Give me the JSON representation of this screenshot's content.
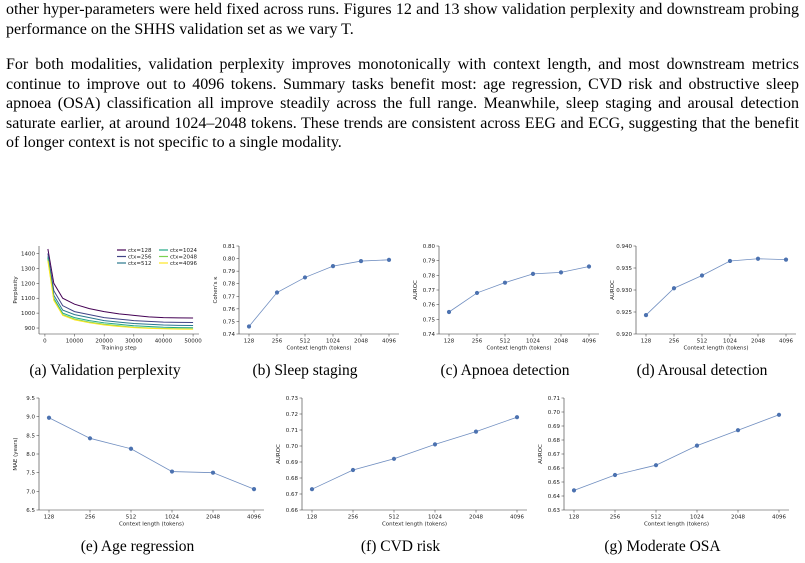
{
  "paragraphs": [
    "other hyper-parameters were held fixed across runs. Figures 12 and 13 show validation perplexity and downstream probing performance on the SHHS validation set as we vary T.",
    "For both modalities, validation perplexity improves monotonically with context length, and most downstream metrics continue to improve out to 4096 tokens. Summary tasks benefit most: age regression, CVD risk and obstructive sleep apnoea (OSA) classification all improve steadily across the full range. Meanwhile, sleep staging and arousal detection saturate earlier, at around 1024–2048 tokens. These trends are consistent across EEG and ECG, suggesting that the benefit of longer context is not specific to a single modality."
  ],
  "chart_data": [
    {
      "type": "line",
      "caption": "(a) Validation perplexity",
      "xlabel": "Training step",
      "ylabel": "Perplexity",
      "x": [
        1000,
        3000,
        6000,
        10000,
        15000,
        20000,
        25000,
        30000,
        35000,
        40000,
        45000,
        50000
      ],
      "series": [
        {
          "name": "ctx=128",
          "color": "#440154",
          "values": [
            1430,
            1200,
            1100,
            1060,
            1030,
            1010,
            995,
            985,
            975,
            970,
            968,
            967
          ]
        },
        {
          "name": "ctx=256",
          "color": "#414487",
          "values": [
            1400,
            1150,
            1050,
            1010,
            990,
            970,
            960,
            950,
            945,
            940,
            938,
            937
          ]
        },
        {
          "name": "ctx=512",
          "color": "#2a788e",
          "values": [
            1380,
            1120,
            1020,
            990,
            970,
            950,
            940,
            930,
            925,
            920,
            918,
            917
          ]
        },
        {
          "name": "ctx=1024",
          "color": "#22a884",
          "values": [
            1370,
            1100,
            1000,
            970,
            950,
            935,
            925,
            915,
            910,
            905,
            903,
            902
          ]
        },
        {
          "name": "ctx=2048",
          "color": "#7ad151",
          "values": [
            1360,
            1090,
            990,
            960,
            940,
            925,
            915,
            905,
            900,
            897,
            895,
            894
          ]
        },
        {
          "name": "ctx=4096",
          "color": "#fde725",
          "values": [
            1350,
            1085,
            985,
            955,
            935,
            920,
            910,
            903,
            898,
            895,
            893,
            892
          ]
        }
      ],
      "xlim": [
        -2000,
        52000
      ],
      "xticks": [
        0,
        10000,
        20000,
        30000,
        40000,
        50000
      ],
      "ylim": [
        860,
        1450
      ],
      "yticks": [
        900,
        1000,
        1100,
        1200,
        1300,
        1400
      ],
      "legend": "upper right"
    },
    {
      "type": "line",
      "caption": "(b) Sleep staging",
      "xlabel": "Context length (tokens)",
      "ylabel": "Cohen's κ",
      "color": "#4c72b0",
      "categories": [
        "128",
        "256",
        "512",
        "1024",
        "2048",
        "4096"
      ],
      "values": [
        0.746,
        0.773,
        0.785,
        0.794,
        0.798,
        0.799
      ],
      "ylim": [
        0.74,
        0.81
      ],
      "yticks": [
        0.74,
        0.75,
        0.76,
        0.77,
        0.78,
        0.79,
        {
          "value": 0.8,
          "label": "0.80"
        },
        0.81
      ]
    },
    {
      "type": "line",
      "caption": "(c) Apnoea detection",
      "xlabel": "Context length (tokens)",
      "ylabel": "AUROC",
      "color": "#4c72b0",
      "categories": [
        "128",
        "256",
        "512",
        "1024",
        "2048",
        "4096"
      ],
      "values": [
        0.755,
        0.768,
        0.775,
        0.781,
        0.782,
        0.786
      ],
      "ylim": [
        0.74,
        0.8
      ],
      "yticks": [
        0.74,
        0.75,
        0.76,
        0.77,
        0.78,
        0.79,
        {
          "value": 0.8,
          "label": "0.80"
        }
      ]
    },
    {
      "type": "line",
      "caption": "(d) Arousal detection",
      "xlabel": "Context length (tokens)",
      "ylabel": "AUROC",
      "color": "#4c72b0",
      "categories": [
        "128",
        "256",
        "512",
        "1024",
        "2048",
        "4096"
      ],
      "values": [
        0.9243,
        0.9304,
        0.9333,
        0.9366,
        0.9371,
        0.9369
      ],
      "ylim": [
        0.92,
        0.94
      ],
      "yticks": [
        {
          "value": 0.92,
          "label": "0.920"
        },
        0.925,
        {
          "value": 0.93,
          "label": "0.930"
        },
        0.935,
        {
          "value": 0.94,
          "label": "0.940"
        }
      ]
    },
    {
      "type": "line",
      "caption": "(e) Age regression",
      "xlabel": "Context length (tokens)",
      "ylabel": "MAE (years)",
      "color": "#4c72b0",
      "categories": [
        "128",
        "256",
        "512",
        "1024",
        "2048",
        "4096"
      ],
      "values": [
        8.97,
        8.42,
        8.14,
        7.53,
        7.5,
        7.06
      ],
      "ylim": [
        6.5,
        9.5
      ],
      "yticks": [
        6.5,
        {
          "value": 7,
          "label": "7.0"
        },
        7.5,
        {
          "value": 8,
          "label": "8.0"
        },
        8.5,
        {
          "value": 9,
          "label": "9.0"
        },
        9.5
      ]
    },
    {
      "type": "line",
      "caption": "(f) CVD risk",
      "xlabel": "Context length (tokens)",
      "ylabel": "AUROC",
      "color": "#4c72b0",
      "categories": [
        "128",
        "256",
        "512",
        "1024",
        "2048",
        "4096"
      ],
      "values": [
        0.673,
        0.685,
        0.692,
        0.701,
        0.709,
        0.718
      ],
      "ylim": [
        0.66,
        0.73
      ],
      "yticks": [
        0.66,
        0.67,
        0.68,
        0.69,
        {
          "value": 0.7,
          "label": "0.70"
        },
        0.71,
        0.72,
        0.73
      ]
    },
    {
      "type": "line",
      "caption": "(g) Moderate OSA",
      "xlabel": "Context length (tokens)",
      "ylabel": "AUROC",
      "color": "#4c72b0",
      "categories": [
        "128",
        "256",
        "512",
        "1024",
        "2048",
        "4096"
      ],
      "values": [
        0.644,
        0.655,
        0.662,
        0.676,
        0.687,
        0.698
      ],
      "ylim": [
        0.63,
        0.71
      ],
      "yticks": [
        0.63,
        0.64,
        0.65,
        0.66,
        0.67,
        0.68,
        0.69,
        {
          "value": 0.7,
          "label": "0.70"
        },
        0.71
      ]
    }
  ]
}
